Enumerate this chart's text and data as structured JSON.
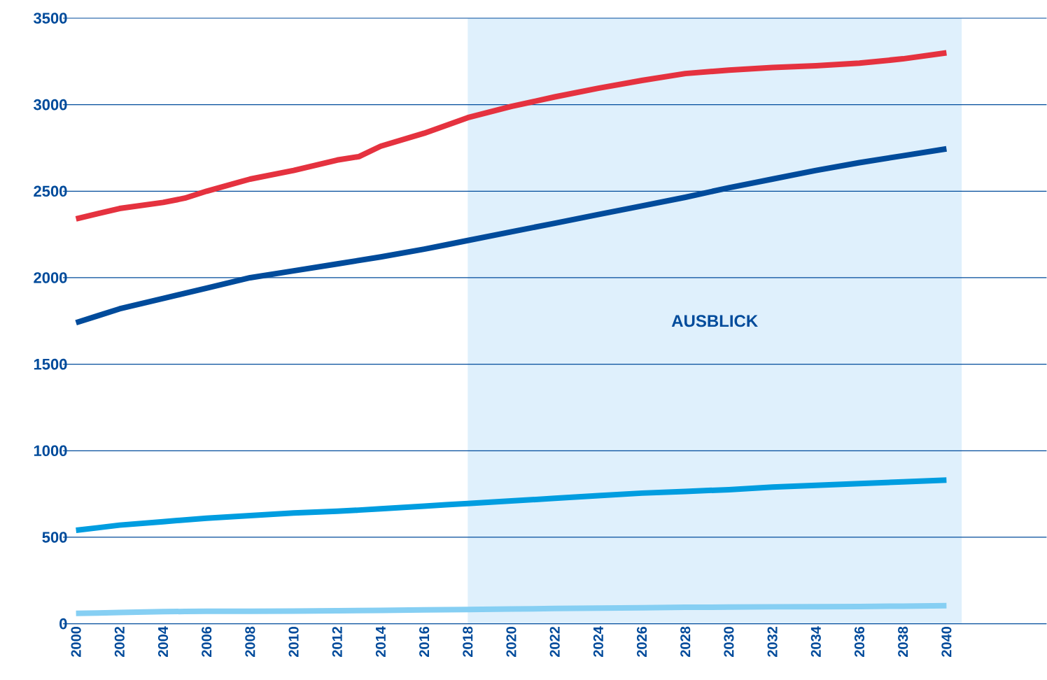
{
  "chart_data": {
    "type": "line",
    "x": [
      2000,
      2001,
      2002,
      2004,
      2005,
      2006,
      2008,
      2010,
      2012,
      2013,
      2014,
      2016,
      2017,
      2018,
      2020,
      2022,
      2024,
      2026,
      2028,
      2030,
      2032,
      2034,
      2036,
      2038,
      2040
    ],
    "series": [
      {
        "color": "#e5323f",
        "values": [
          2340,
          2370,
          2400,
          2435,
          2460,
          2500,
          2570,
          2620,
          2680,
          2700,
          2760,
          2835,
          2880,
          2925,
          2990,
          3045,
          3095,
          3140,
          3180,
          3200,
          3215,
          3225,
          3240,
          3265,
          3300
        ]
      },
      {
        "color": "#004b9b",
        "values": [
          1740,
          1780,
          1820,
          1880,
          1910,
          1940,
          2000,
          2040,
          2080,
          2100,
          2120,
          2165,
          2190,
          2215,
          2265,
          2315,
          2365,
          2415,
          2465,
          2520,
          2570,
          2620,
          2665,
          2705,
          2745
        ]
      },
      {
        "color": "#009de0",
        "values": [
          540,
          555,
          570,
          590,
          600,
          610,
          625,
          640,
          650,
          657,
          665,
          680,
          688,
          695,
          710,
          725,
          740,
          755,
          765,
          775,
          790,
          800,
          810,
          820,
          830
        ]
      },
      {
        "color": "#86cff3",
        "values": [
          60,
          62,
          65,
          70,
          71,
          72,
          72,
          73,
          75,
          76,
          77,
          80,
          81,
          82,
          85,
          88,
          90,
          92,
          95,
          96,
          98,
          99,
          100,
          102,
          105
        ]
      }
    ],
    "xlim": [
      1999.4,
      2044.6
    ],
    "ylim": [
      0,
      3500
    ],
    "xticks": [
      2000,
      2002,
      2004,
      2006,
      2008,
      2010,
      2012,
      2014,
      2016,
      2018,
      2020,
      2022,
      2024,
      2026,
      2028,
      2030,
      2032,
      2034,
      2036,
      2038,
      2040
    ],
    "yticks": [
      0,
      500,
      1000,
      1500,
      2000,
      2500,
      3000,
      3500
    ],
    "grid": "y",
    "marker": "none",
    "line_style": "solid",
    "bands": [
      {
        "axis": "x",
        "from": 2018,
        "to": 2040.7,
        "label": "AUSBLICK",
        "color": "#dff0fc"
      }
    ]
  }
}
